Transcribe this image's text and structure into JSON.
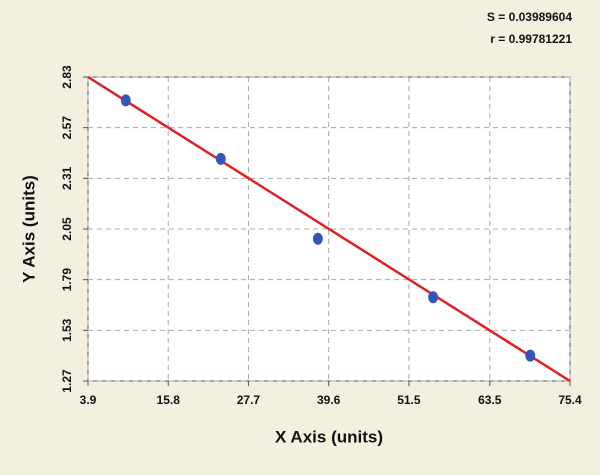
{
  "chart_data": {
    "type": "scatter",
    "x_label": "X Axis (units)",
    "y_label": "Y Axis (units)",
    "annotations": [
      "S = 0.03989604",
      "r = 0.99781221"
    ],
    "x": [
      9.5,
      23.6,
      38.0,
      55.1,
      69.5
    ],
    "values": [
      2.71,
      2.41,
      2.0,
      1.7,
      1.4
    ],
    "color": "#3355bb",
    "fit_line": {
      "color": "#e02020",
      "x": [
        3.9,
        75.4
      ],
      "y": [
        2.83,
        1.27
      ]
    },
    "xlim": [
      3.9,
      75.4
    ],
    "xticks": [
      3.9,
      15.8,
      27.7,
      39.6,
      51.5,
      63.5,
      75.4
    ],
    "ylim": [
      1.27,
      2.83
    ],
    "yticks": [
      1.27,
      1.53,
      1.79,
      2.05,
      2.31,
      2.57,
      2.83
    ],
    "grid": true
  }
}
